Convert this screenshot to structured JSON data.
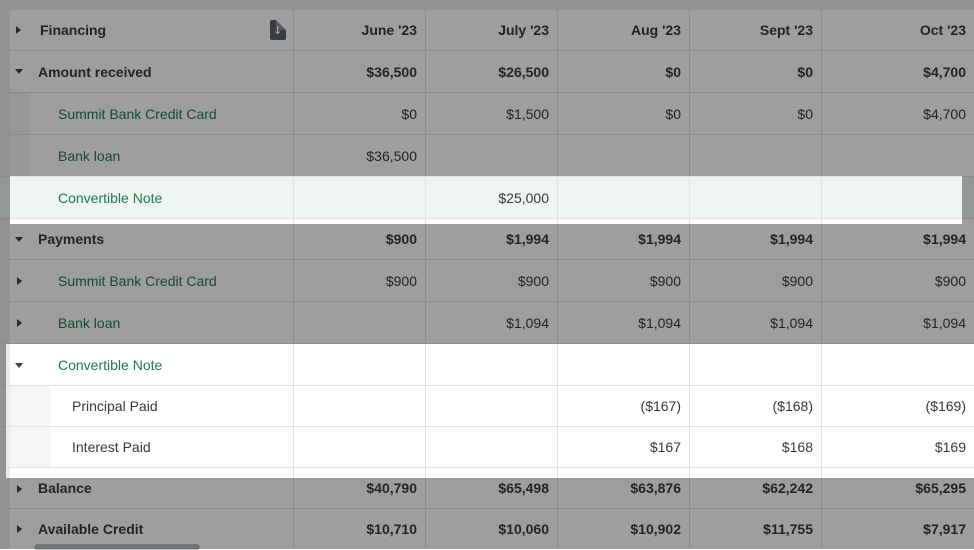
{
  "header": {
    "label": "Financing",
    "columns": [
      "June '23",
      "July '23",
      "Aug '23",
      "Sept '23",
      "Oct '23"
    ]
  },
  "rows": [
    {
      "label": "Amount received",
      "bold": true,
      "expander": "down",
      "values": [
        "$36,500",
        "$26,500",
        "$0",
        "$0",
        "$4,700"
      ]
    },
    {
      "label": "Summit Bank Credit Card",
      "values": [
        "$0",
        "$1,500",
        "$0",
        "$0",
        "$4,700"
      ]
    },
    {
      "label": "Bank loan",
      "values": [
        "$36,500",
        "",
        "",
        "",
        ""
      ]
    },
    {
      "label": "Convertible Note",
      "values": [
        "",
        "$25,000",
        "",
        "",
        ""
      ]
    },
    {
      "label": "Payments",
      "bold": true,
      "expander": "down",
      "values": [
        "$900",
        "$1,994",
        "$1,994",
        "$1,994",
        "$1,994"
      ]
    },
    {
      "label": "Summit Bank Credit Card",
      "expander": "right",
      "values": [
        "$900",
        "$900",
        "$900",
        "$900",
        "$900"
      ]
    },
    {
      "label": "Bank loan",
      "expander": "right",
      "values": [
        "",
        "$1,094",
        "$1,094",
        "$1,094",
        "$1,094"
      ]
    },
    {
      "label": "Convertible Note",
      "expander": "down",
      "values": [
        "",
        "",
        "",
        "",
        ""
      ]
    },
    {
      "label": "Principal Paid",
      "values": [
        "",
        "",
        "($167)",
        "($168)",
        "($169)"
      ]
    },
    {
      "label": "Interest Paid",
      "values": [
        "",
        "",
        "$167",
        "$168",
        "$169"
      ]
    },
    {
      "label": "Balance",
      "bold": true,
      "expander": "right",
      "values": [
        "$40,790",
        "$65,498",
        "$63,876",
        "$62,242",
        "$65,295"
      ]
    },
    {
      "label": "Available Credit",
      "bold": true,
      "expander": "right",
      "values": [
        "$10,710",
        "$10,060",
        "$10,902",
        "$11,755",
        "$7,917"
      ]
    }
  ],
  "colors": {
    "accent_green": "#1e7a4f",
    "dim_overlay": "rgba(0,0,0,0.38)",
    "highlight_tint": "#eef5f2"
  },
  "icons": {
    "header_action": "download-file-icon"
  }
}
